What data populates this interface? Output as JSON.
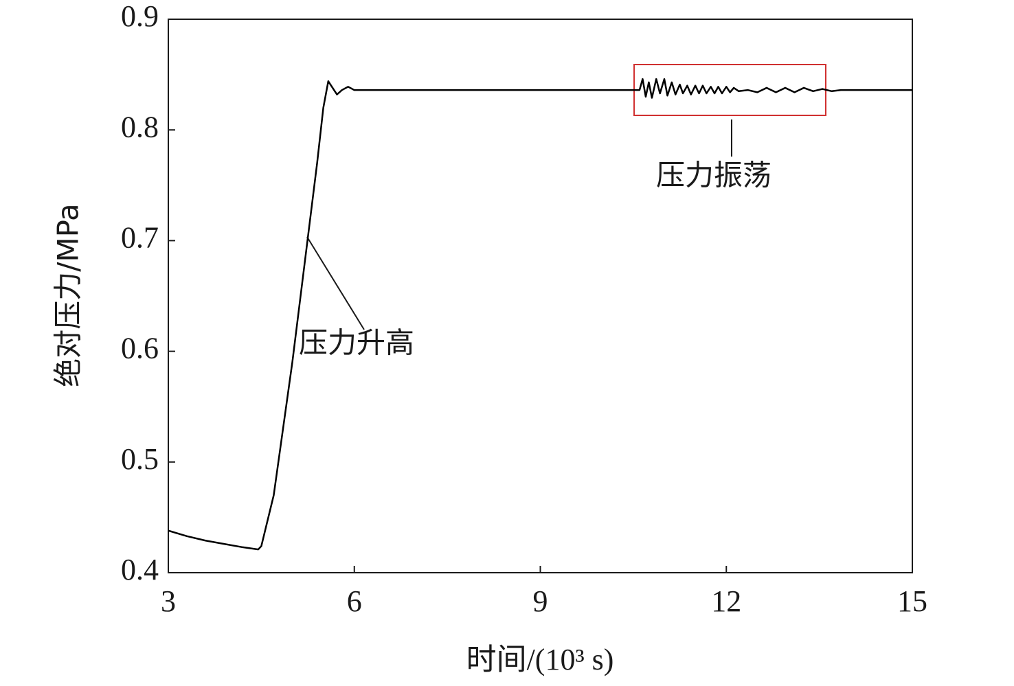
{
  "chart_data": {
    "type": "line",
    "xlabel": "时间/(10³ s)",
    "ylabel": "绝对压力/MPa",
    "x": [
      3.0,
      3.3,
      3.6,
      3.9,
      4.2,
      4.45,
      4.5,
      4.7,
      5.0,
      5.2,
      5.4,
      5.5,
      5.58,
      5.65,
      5.72,
      5.8,
      5.9,
      6.0,
      6.2,
      7,
      8,
      9,
      10,
      10.6,
      10.65,
      10.7,
      10.75,
      10.8,
      10.87,
      10.93,
      11.0,
      11.05,
      11.12,
      11.18,
      11.25,
      11.3,
      11.37,
      11.43,
      11.5,
      11.56,
      11.62,
      11.68,
      11.75,
      11.81,
      11.87,
      11.93,
      12.0,
      12.06,
      12.12,
      12.2,
      12.35,
      12.5,
      12.65,
      12.8,
      12.95,
      13.1,
      13.25,
      13.4,
      13.55,
      13.7,
      13.85,
      14,
      15
    ],
    "values": [
      0.438,
      0.433,
      0.429,
      0.426,
      0.423,
      0.421,
      0.424,
      0.47,
      0.59,
      0.68,
      0.77,
      0.82,
      0.844,
      0.838,
      0.832,
      0.836,
      0.839,
      0.836,
      0.836,
      0.836,
      0.836,
      0.836,
      0.836,
      0.836,
      0.846,
      0.83,
      0.843,
      0.829,
      0.846,
      0.833,
      0.846,
      0.831,
      0.843,
      0.832,
      0.841,
      0.833,
      0.84,
      0.832,
      0.84,
      0.833,
      0.84,
      0.833,
      0.839,
      0.833,
      0.839,
      0.833,
      0.839,
      0.834,
      0.838,
      0.835,
      0.836,
      0.834,
      0.838,
      0.834,
      0.838,
      0.834,
      0.838,
      0.835,
      0.837,
      0.835,
      0.836,
      0.836,
      0.836
    ],
    "color": "#000000",
    "xlim": [
      3,
      15
    ],
    "xticks": [
      3,
      6,
      9,
      12,
      15
    ],
    "ylim": [
      0.4,
      0.9
    ],
    "yticks": [
      0.4,
      0.5,
      0.6,
      0.7,
      0.8,
      0.9
    ],
    "annotations": [
      "压力升高",
      "压力振荡"
    ],
    "highlight_color": "#d03030"
  }
}
